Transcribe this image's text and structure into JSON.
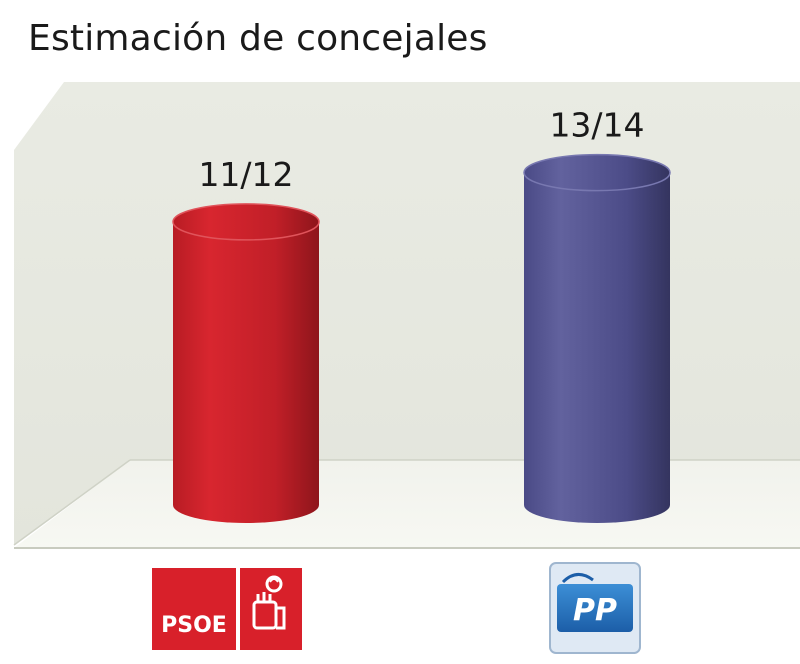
{
  "chart_data": {
    "type": "bar",
    "title": "Estimación de concejales",
    "categories": [
      "PSOE",
      "PP"
    ],
    "values": [
      11.5,
      13.5
    ],
    "value_labels": [
      "11/12",
      "13/14"
    ],
    "ylim": [
      0,
      14.5
    ],
    "grid": false,
    "colors": [
      "#c8202a",
      "#4f4f8c"
    ]
  },
  "logos": {
    "psoe_text": "PSOE",
    "pp_text": "PP"
  }
}
